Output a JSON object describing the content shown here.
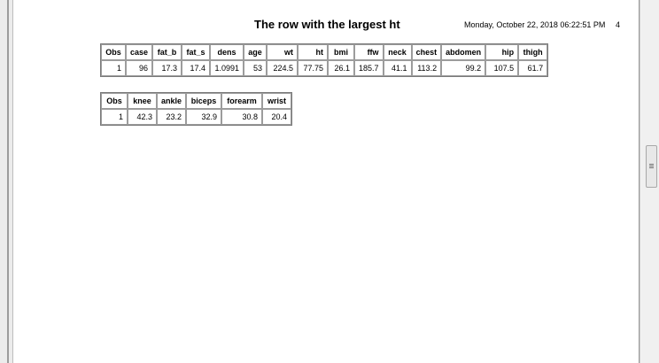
{
  "report": {
    "title": "The row with the largest ht",
    "datetime": "Monday, October 22, 2018 06:22:51 PM",
    "page_number": "4"
  },
  "table1": {
    "columns": [
      "Obs",
      "case",
      "fat_b",
      "fat_s",
      "dens",
      "age",
      "wt",
      "ht",
      "bmi",
      "ffw",
      "neck",
      "chest",
      "abdomen",
      "hip",
      "thigh"
    ],
    "rows": [
      [
        "1",
        "96",
        "17.3",
        "17.4",
        "1.0991",
        "53",
        "224.5",
        "77.75",
        "26.1",
        "185.7",
        "41.1",
        "113.2",
        "99.2",
        "107.5",
        "61.7"
      ]
    ]
  },
  "table2": {
    "columns": [
      "Obs",
      "knee",
      "ankle",
      "biceps",
      "forearm",
      "wrist"
    ],
    "rows": [
      [
        "1",
        "42.3",
        "23.2",
        "32.9",
        "30.8",
        "20.4"
      ]
    ]
  }
}
